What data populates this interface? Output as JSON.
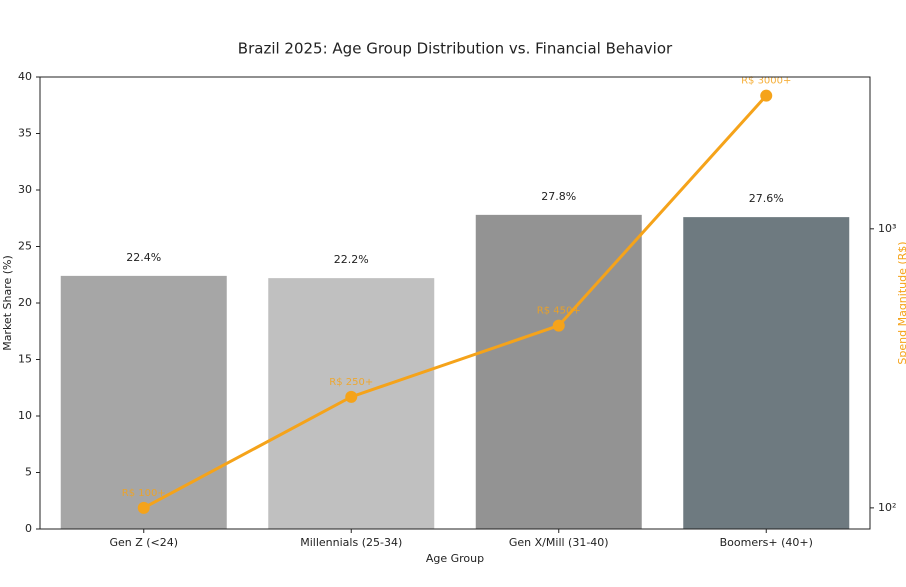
{
  "chart_data": {
    "type": "bar-line",
    "title": "Brazil 2025: Age Group Distribution vs. Financial Behavior",
    "x_label": "Age Group",
    "y_label": "Market Share (%)",
    "y2_label": "Spend Magnitude (R$)",
    "categories": [
      "Gen Z (<24)",
      "Millennials (25-34)",
      "Gen X/Mill (31-40)",
      "Boomers+ (40+)"
    ],
    "series": [
      {
        "type": "bar",
        "colors": [
          "#a6a6a6",
          "#c0c0c0",
          "#939393",
          "#6e7a80"
        ],
        "values": [
          22.4,
          22.2,
          27.8,
          27.6
        ],
        "value_labels": [
          "22.4%",
          "22.2%",
          "27.8%",
          "27.6%"
        ]
      },
      {
        "type": "line",
        "axis": "y2",
        "color": "#f5a31a",
        "values": [
          100,
          250,
          450,
          3000
        ],
        "value_labels": [
          "R$ 100+",
          "R$ 250+",
          "R$ 450+",
          "R$ 3000+"
        ]
      }
    ],
    "ylim": [
      0,
      40
    ],
    "yticks": [
      0,
      5,
      10,
      15,
      20,
      25,
      30,
      35,
      40
    ],
    "y2lim": [
      84,
      3500
    ],
    "y2_log": true,
    "y2ticks": [
      {
        "value": 100,
        "label": "10²"
      },
      {
        "value": 1000,
        "label": "10³"
      }
    ]
  }
}
